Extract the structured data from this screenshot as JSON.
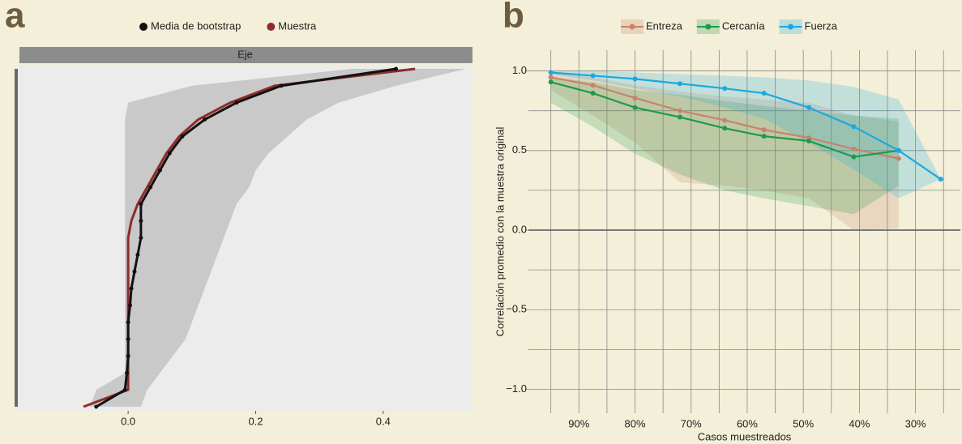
{
  "chart_data": [
    {
      "type": "line",
      "orientation": "horizontal",
      "panel_label": "a",
      "strip": "Eje",
      "categories": [
        null,
        null,
        null,
        null,
        null,
        null,
        null,
        null,
        null,
        null,
        null,
        null,
        null,
        null,
        null,
        null,
        null,
        null,
        null,
        null,
        null
      ],
      "band": {
        "color": "#c9c9c9",
        "lower": [
          -0.06,
          -0.05,
          -0.005,
          -0.005,
          -0.005,
          -0.005,
          -0.005,
          -0.005,
          -0.005,
          -0.005,
          -0.005,
          -0.005,
          -0.005,
          -0.005,
          -0.005,
          -0.005,
          -0.005,
          -0.005,
          0.0,
          0.1,
          0.35
        ],
        "upper": [
          0.02,
          0.03,
          0.05,
          0.07,
          0.09,
          0.1,
          0.11,
          0.12,
          0.13,
          0.14,
          0.15,
          0.16,
          0.17,
          0.19,
          0.2,
          0.22,
          0.25,
          0.28,
          0.33,
          0.42,
          0.53
        ]
      },
      "series": [
        {
          "name": "Muestra",
          "color": "#8e2b2b",
          "markers": false,
          "values": [
            -0.07,
            0.0,
            0.0,
            0.0,
            0.0,
            0.0,
            0.0,
            0.0,
            0.0,
            0.0,
            0.0,
            0.005,
            0.015,
            0.03,
            0.045,
            0.06,
            0.08,
            0.11,
            0.16,
            0.23,
            0.45
          ]
        },
        {
          "name": "Media de bootstrap",
          "color": "#111111",
          "markers": true,
          "values": [
            -0.05,
            -0.005,
            -0.002,
            0.0,
            0.0,
            0.0,
            0.003,
            0.005,
            0.01,
            0.015,
            0.02,
            0.02,
            0.02,
            0.035,
            0.05,
            0.065,
            0.085,
            0.12,
            0.17,
            0.24,
            0.42
          ]
        }
      ],
      "legend_order": [
        1,
        0
      ],
      "xlim": [
        -0.173,
        0.54
      ],
      "xticks": [
        {
          "value": 0,
          "label": "0.0"
        },
        0.2,
        0.4
      ]
    },
    {
      "type": "line",
      "panel_label": "b",
      "x_label": "Casos muestreados",
      "y_label": "Correlación promedio con la muestra original",
      "x": [
        95,
        87.5,
        80,
        72,
        64,
        57,
        49,
        41,
        33,
        25.5
      ],
      "series": [
        {
          "name": "Entreza",
          "color": "#c8836a",
          "values": [
            0.96,
            0.91,
            0.83,
            0.75,
            0.69,
            0.63,
            0.58,
            0.51,
            0.45,
            null
          ],
          "band_upper": [
            0.99,
            0.96,
            0.91,
            0.87,
            0.84,
            0.82,
            0.8,
            0.72,
            0.68,
            null
          ],
          "band_lower": [
            0.88,
            0.72,
            0.55,
            0.3,
            0.28,
            0.25,
            0.2,
            0.0,
            0.01,
            null
          ]
        },
        {
          "name": "Cercanía",
          "color": "#1f9a4a",
          "values": [
            0.93,
            0.86,
            0.77,
            0.71,
            0.64,
            0.59,
            0.56,
            0.46,
            0.5,
            null
          ],
          "band_upper": [
            0.96,
            0.93,
            0.88,
            0.85,
            0.81,
            0.78,
            0.75,
            0.72,
            0.7,
            null
          ],
          "band_lower": [
            0.8,
            0.65,
            0.48,
            0.35,
            0.25,
            0.2,
            0.15,
            0.1,
            0.28,
            null
          ]
        },
        {
          "name": "Fuerza",
          "color": "#1ba8e0",
          "values": [
            0.99,
            0.97,
            0.95,
            0.92,
            0.89,
            0.86,
            0.77,
            0.65,
            0.5,
            0.32
          ],
          "band_upper": [
            1.0,
            1.0,
            0.99,
            0.98,
            0.97,
            0.96,
            0.94,
            0.9,
            0.82,
            0.32
          ],
          "band_lower": [
            0.98,
            0.94,
            0.89,
            0.84,
            0.77,
            0.7,
            0.55,
            0.38,
            0.2,
            0.32
          ]
        }
      ],
      "xlim": [
        99,
        22
      ],
      "xticks": [
        {
          "value": 90,
          "label": "90%"
        },
        {
          "value": 80,
          "label": "80%"
        },
        {
          "value": 70,
          "label": "70%"
        },
        {
          "value": 60,
          "label": "60%"
        },
        {
          "value": 50,
          "label": "50%"
        },
        {
          "value": 40,
          "label": "40%"
        },
        {
          "value": 30,
          "label": "30%"
        }
      ],
      "xminorticks": [
        95,
        85,
        75,
        65,
        55,
        45,
        35,
        25
      ],
      "ylim": [
        -1.15,
        1.13
      ],
      "yticks": [
        {
          "value": 1.0,
          "label": "1.0"
        },
        {
          "value": 0.5,
          "label": "0.5"
        },
        {
          "value": 0,
          "label": "0.0"
        },
        {
          "value": -0.5,
          "label": "−0.5"
        },
        {
          "value": -1.0,
          "label": "−1.0"
        }
      ],
      "yminorticks": [
        0.75,
        0.25,
        -0.25,
        -0.75
      ],
      "grid": true,
      "zero_line": true
    }
  ]
}
